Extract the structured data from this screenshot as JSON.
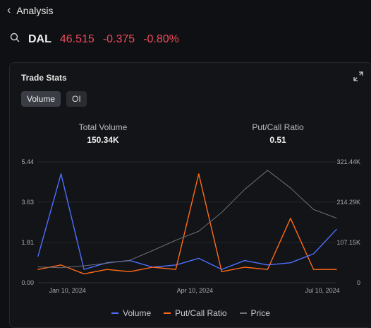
{
  "header": {
    "back_icon": "chevron-left-icon",
    "title": "Analysis"
  },
  "quote": {
    "search_icon": "search-icon",
    "symbol": "DAL",
    "price": "46.515",
    "change": "-0.375",
    "change_pct": "-0.80%"
  },
  "trade_stats": {
    "title": "Trade Stats",
    "expand_icon": "expand-icon",
    "tabs": [
      {
        "label": "Volume",
        "active": true
      },
      {
        "label": "OI",
        "active": false
      }
    ],
    "stats": [
      {
        "label": "Total Volume",
        "value": "150.34K"
      },
      {
        "label": "Put/Call Ratio",
        "value": "0.51"
      }
    ]
  },
  "chart_data": {
    "type": "line",
    "x": [
      "2023-12-20",
      "2024-01-06",
      "2024-01-23",
      "2024-02-09",
      "2024-02-26",
      "2024-03-14",
      "2024-03-31",
      "2024-04-17",
      "2024-05-04",
      "2024-05-21",
      "2024-06-07",
      "2024-06-24",
      "2024-07-11",
      "2024-07-20"
    ],
    "x_ticks": [
      "Jan 10, 2024",
      "Apr 10, 2024",
      "Jul 10, 2024"
    ],
    "y_left_ticks": [
      "5.44",
      "3.63",
      "1.81",
      "0.00"
    ],
    "y_right_ticks": [
      "321.44K",
      "214.29K",
      "107.15K",
      "0"
    ],
    "ylim_left": [
      0,
      5.44
    ],
    "ylim_right": [
      0,
      321440
    ],
    "series": [
      {
        "name": "Volume",
        "color": "#4c6fff",
        "axis": "left",
        "values": [
          1.2,
          4.9,
          0.6,
          0.9,
          1.0,
          0.7,
          0.8,
          1.1,
          0.6,
          1.0,
          0.8,
          0.9,
          1.3,
          2.4
        ]
      },
      {
        "name": "Put/Call Ratio",
        "color": "#ff6a16",
        "axis": "left",
        "values": [
          0.6,
          0.8,
          0.4,
          0.6,
          0.5,
          0.7,
          0.6,
          4.9,
          0.5,
          0.7,
          0.6,
          2.9,
          0.6,
          0.6
        ]
      },
      {
        "name": "Price",
        "color": "#6b7079",
        "axis": "right",
        "values": [
          42000,
          40000,
          45000,
          52000,
          60000,
          86000,
          113000,
          137000,
          187000,
          248000,
          299000,
          252000,
          195000,
          172000
        ]
      }
    ],
    "legend": [
      "Volume",
      "Put/Call Ratio",
      "Price"
    ],
    "grid": true
  }
}
